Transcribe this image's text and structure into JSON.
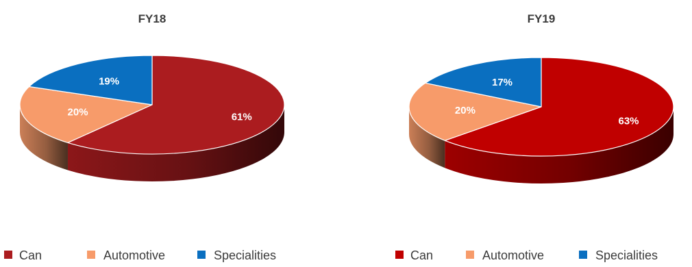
{
  "chart_data": [
    {
      "type": "pie",
      "title": "FY18",
      "categories": [
        "Can",
        "Automotive",
        "Specialities"
      ],
      "values": [
        61,
        20,
        19
      ],
      "labels": [
        "61%",
        "20%",
        "19%"
      ],
      "colors": [
        "#ab1c1f",
        "#f79b6a",
        "#0a6fc0"
      ],
      "legend": [
        "Can",
        "Automotive",
        "Specialities"
      ],
      "legend_position": "bottom",
      "style": "3d"
    },
    {
      "type": "pie",
      "title": "FY19",
      "categories": [
        "Can",
        "Automotive",
        "Specialities"
      ],
      "values": [
        63,
        20,
        17
      ],
      "labels": [
        "63%",
        "20%",
        "17%"
      ],
      "colors": [
        "#c00000",
        "#f79b6a",
        "#0a6fc0"
      ],
      "legend": [
        "Can",
        "Automotive",
        "Specialities"
      ],
      "legend_position": "bottom",
      "style": "3d"
    }
  ]
}
